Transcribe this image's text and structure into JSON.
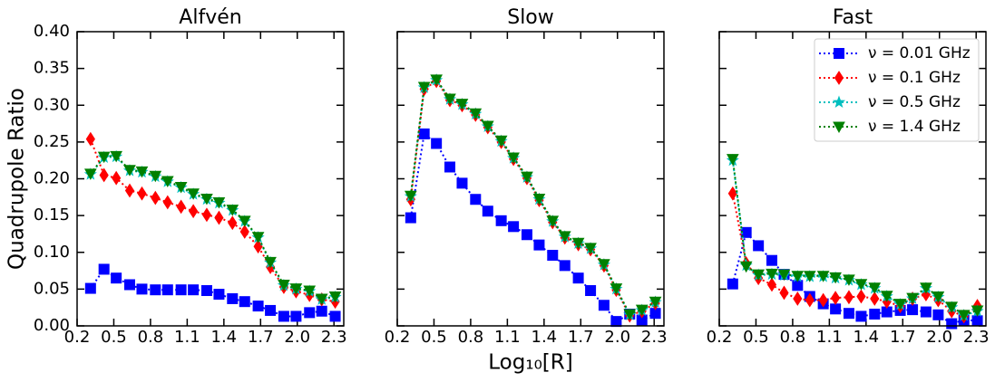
{
  "chart_data": [
    {
      "type": "line",
      "title": "Alfvén",
      "ylabel": "Quadrupole Ratio",
      "x": [
        0.31,
        0.42,
        0.52,
        0.63,
        0.73,
        0.84,
        0.94,
        1.05,
        1.15,
        1.26,
        1.36,
        1.47,
        1.57,
        1.68,
        1.78,
        1.89,
        1.99,
        2.1,
        2.2,
        2.31
      ],
      "xlim": [
        0.2,
        2.38
      ],
      "xticks": [
        0.2,
        0.5,
        0.8,
        1.1,
        1.4,
        1.7,
        {
          "value": 2.0,
          "label": "2.0"
        },
        2.3
      ],
      "ylim": [
        0,
        0.4
      ],
      "yticks": [
        {
          "value": 0,
          "label": "0.00"
        },
        0.05,
        {
          "value": 0.1,
          "label": "0.10"
        },
        0.15,
        {
          "value": 0.2,
          "label": "0.20"
        },
        0.25,
        {
          "value": 0.3,
          "label": "0.30"
        },
        0.35,
        {
          "value": 0.4,
          "label": "0.40"
        }
      ],
      "series": [
        {
          "color": "#0000ff",
          "marker": "square",
          "values": [
            0.051,
            0.077,
            0.065,
            0.056,
            0.05,
            0.049,
            0.049,
            0.049,
            0.049,
            0.048,
            0.043,
            0.037,
            0.033,
            0.027,
            0.021,
            0.013,
            0.013,
            0.018,
            0.02,
            0.013
          ]
        },
        {
          "color": "#ff0000",
          "marker": "diamond",
          "values": [
            0.254,
            0.205,
            0.201,
            0.184,
            0.18,
            0.174,
            0.168,
            0.162,
            0.156,
            0.151,
            0.147,
            0.14,
            0.128,
            0.108,
            0.08,
            0.053,
            0.047,
            0.042,
            0.036,
            0.033
          ]
        },
        {
          "color": "#00bfbf",
          "marker": "star",
          "values": [
            0.206,
            0.229,
            0.23,
            0.211,
            0.209,
            0.203,
            0.196,
            0.188,
            0.179,
            0.172,
            0.167,
            0.157,
            0.142,
            0.12,
            0.086,
            0.055,
            0.05,
            0.047,
            0.036,
            0.039
          ]
        },
        {
          "color": "#008000",
          "marker": "triangle-down",
          "values": [
            0.207,
            0.23,
            0.231,
            0.212,
            0.21,
            0.204,
            0.197,
            0.189,
            0.18,
            0.173,
            0.168,
            0.158,
            0.143,
            0.121,
            0.087,
            0.056,
            0.051,
            0.048,
            0.037,
            0.04
          ]
        }
      ]
    },
    {
      "type": "line",
      "title": "Slow",
      "xlabel": "Log₁₀[R]",
      "x": [
        0.31,
        0.42,
        0.52,
        0.63,
        0.73,
        0.84,
        0.94,
        1.05,
        1.15,
        1.26,
        1.36,
        1.47,
        1.57,
        1.68,
        1.78,
        1.89,
        1.99,
        2.1,
        2.2,
        2.31
      ],
      "xlim": [
        0.2,
        2.38
      ],
      "xticks": [
        0.2,
        0.5,
        0.8,
        1.1,
        1.4,
        1.7,
        {
          "value": 2.0,
          "label": "2.0"
        },
        2.3
      ],
      "ylim": [
        0,
        0.4
      ],
      "yticks": [
        0,
        0.05,
        0.1,
        0.15,
        0.2,
        0.25,
        0.3,
        0.35,
        0.4
      ],
      "ytick_labels": false,
      "series": [
        {
          "color": "#0000ff",
          "marker": "square",
          "values": [
            0.147,
            0.261,
            0.248,
            0.216,
            0.194,
            0.172,
            0.156,
            0.143,
            0.135,
            0.124,
            0.11,
            0.096,
            0.082,
            0.065,
            0.048,
            0.028,
            0.006,
            0.016,
            0.008,
            0.017
          ]
        },
        {
          "color": "#ff0000",
          "marker": "diamond",
          "values": [
            0.172,
            0.322,
            0.333,
            0.307,
            0.3,
            0.287,
            0.27,
            0.25,
            0.227,
            0.201,
            0.171,
            0.141,
            0.12,
            0.111,
            0.104,
            0.082,
            0.049,
            0.014,
            0.02,
            0.031
          ]
        },
        {
          "color": "#00bfbf",
          "marker": "star",
          "values": [
            0.176,
            0.324,
            0.334,
            0.308,
            0.301,
            0.288,
            0.271,
            0.251,
            0.228,
            0.202,
            0.172,
            0.142,
            0.121,
            0.112,
            0.105,
            0.083,
            0.05,
            0.015,
            0.021,
            0.032
          ]
        },
        {
          "color": "#008000",
          "marker": "triangle-down",
          "values": [
            0.177,
            0.325,
            0.335,
            0.309,
            0.302,
            0.289,
            0.272,
            0.252,
            0.229,
            0.203,
            0.173,
            0.143,
            0.122,
            0.113,
            0.106,
            0.084,
            0.051,
            0.016,
            0.022,
            0.033
          ]
        }
      ]
    },
    {
      "type": "line",
      "title": "Fast",
      "x": [
        0.31,
        0.42,
        0.52,
        0.63,
        0.73,
        0.84,
        0.94,
        1.05,
        1.15,
        1.26,
        1.36,
        1.47,
        1.57,
        1.68,
        1.78,
        1.89,
        1.99,
        2.1,
        2.2,
        2.31
      ],
      "xlim": [
        0.2,
        2.38
      ],
      "xticks": [
        0.2,
        0.5,
        0.8,
        1.1,
        1.4,
        1.7,
        {
          "value": 2.0,
          "label": "2.0"
        },
        2.3
      ],
      "ylim": [
        0,
        0.4
      ],
      "yticks": [
        0,
        0.05,
        0.1,
        0.15,
        0.2,
        0.25,
        0.3,
        0.35,
        0.4
      ],
      "ytick_labels": false,
      "legend": "upper right",
      "series": [
        {
          "name": "ν = 0.01 GHz",
          "color": "#0000ff",
          "marker": "square",
          "values": [
            0.057,
            0.127,
            0.109,
            0.089,
            0.07,
            0.055,
            0.04,
            0.03,
            0.023,
            0.017,
            0.013,
            0.016,
            0.019,
            0.021,
            0.022,
            0.019,
            0.015,
            0.003,
            0.008,
            0.007
          ]
        },
        {
          "name": "ν = 0.1 GHz",
          "color": "#ff0000",
          "marker": "diamond",
          "values": [
            0.18,
            0.085,
            0.065,
            0.056,
            0.045,
            0.037,
            0.035,
            0.035,
            0.038,
            0.039,
            0.04,
            0.037,
            0.033,
            0.027,
            0.037,
            0.043,
            0.035,
            0.02,
            0.013,
            0.027
          ]
        },
        {
          "name": "ν = 0.5 GHz",
          "color": "#00bfbf",
          "marker": "star",
          "values": [
            0.225,
            0.082,
            0.069,
            0.07,
            0.069,
            0.067,
            0.067,
            0.067,
            0.065,
            0.062,
            0.056,
            0.051,
            0.04,
            0.029,
            0.037,
            0.051,
            0.039,
            0.025,
            0.014,
            0.02
          ]
        },
        {
          "name": "ν = 1.4 GHz",
          "color": "#008000",
          "marker": "triangle-down",
          "values": [
            0.227,
            0.081,
            0.07,
            0.071,
            0.07,
            0.068,
            0.068,
            0.068,
            0.066,
            0.063,
            0.057,
            0.052,
            0.041,
            0.03,
            0.038,
            0.052,
            0.04,
            0.026,
            0.015,
            0.021
          ]
        }
      ]
    }
  ]
}
